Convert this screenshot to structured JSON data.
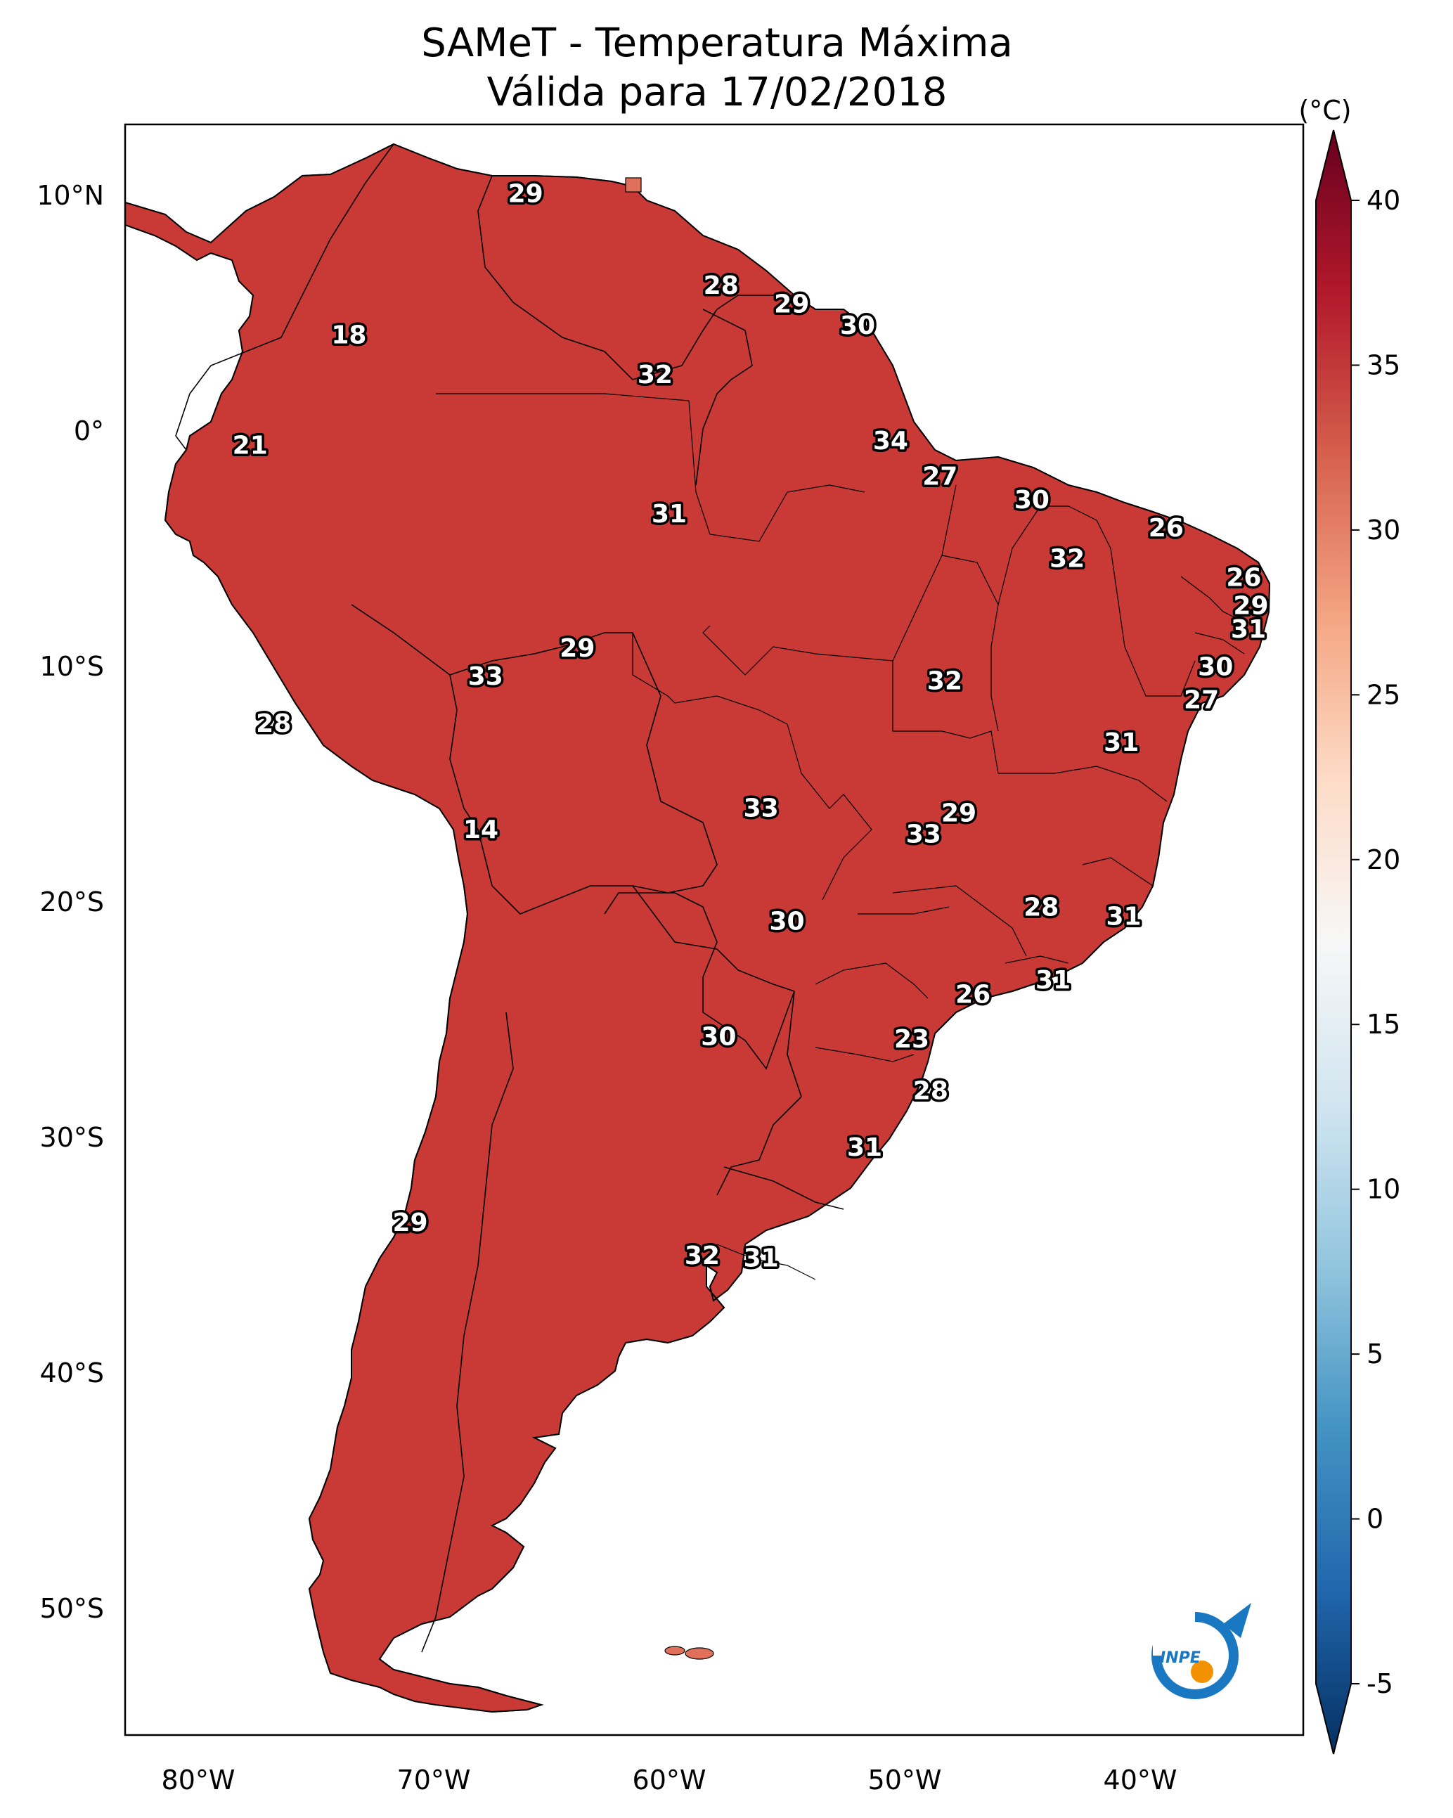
{
  "title_line1": "SAMeT - Temperatura Máxima",
  "title_line2": "Válida para 17/02/2018",
  "colorbar": {
    "unit_label": "(°C)",
    "range": [
      -5,
      40
    ],
    "ticks": [
      "40",
      "35",
      "30",
      "25",
      "20",
      "15",
      "10",
      "5",
      "0",
      "-5"
    ],
    "ramp_colors": [
      "#053061",
      "#2166ac",
      "#4393c3",
      "#92c5de",
      "#d1e5f0",
      "#f7f7f7",
      "#fddbc7",
      "#f4a582",
      "#d6604d",
      "#b2182b",
      "#67001f"
    ]
  },
  "latitude_ticks": [
    "10°N",
    "0°",
    "10°S",
    "20°S",
    "30°S",
    "40°S",
    "50°S"
  ],
  "longitude_ticks": [
    "80°W",
    "70°W",
    "60°W",
    "50°W",
    "40°W"
  ],
  "map_colors": {
    "hot": "#a3152a",
    "warm": "#c93a36",
    "mild": "#e0705a",
    "andes_cool": "#c6dbec",
    "andes_cold": "#5e9ccb"
  },
  "station_values": [
    {
      "value": "29",
      "lon": -66.1,
      "lat": 10.5
    },
    {
      "value": "28",
      "lon": -57.8,
      "lat": 6.6
    },
    {
      "value": "29",
      "lon": -54.8,
      "lat": 5.8
    },
    {
      "value": "30",
      "lon": -52.0,
      "lat": 4.9
    },
    {
      "value": "18",
      "lon": -73.6,
      "lat": 4.5
    },
    {
      "value": "32",
      "lon": -60.6,
      "lat": 2.8
    },
    {
      "value": "34",
      "lon": -50.6,
      "lat": 0.0
    },
    {
      "value": "21",
      "lon": -77.8,
      "lat": -0.2
    },
    {
      "value": "27",
      "lon": -48.5,
      "lat": -1.5
    },
    {
      "value": "30",
      "lon": -44.6,
      "lat": -2.5
    },
    {
      "value": "31",
      "lon": -60.0,
      "lat": -3.1
    },
    {
      "value": "26",
      "lon": -38.9,
      "lat": -3.7
    },
    {
      "value": "32",
      "lon": -43.1,
      "lat": -5.0
    },
    {
      "value": "26",
      "lon": -35.6,
      "lat": -5.8
    },
    {
      "value": "29",
      "lon": -35.3,
      "lat": -7.0
    },
    {
      "value": "31",
      "lon": -35.4,
      "lat": -8.0
    },
    {
      "value": "29",
      "lon": -63.9,
      "lat": -8.8
    },
    {
      "value": "30",
      "lon": -36.8,
      "lat": -9.6
    },
    {
      "value": "33",
      "lon": -67.8,
      "lat": -10.0
    },
    {
      "value": "32",
      "lon": -48.3,
      "lat": -10.2
    },
    {
      "value": "27",
      "lon": -37.4,
      "lat": -11.0
    },
    {
      "value": "28",
      "lon": -76.8,
      "lat": -12.0
    },
    {
      "value": "31",
      "lon": -40.8,
      "lat": -12.8
    },
    {
      "value": "33",
      "lon": -56.1,
      "lat": -15.6
    },
    {
      "value": "29",
      "lon": -47.7,
      "lat": -15.8
    },
    {
      "value": "33",
      "lon": -49.2,
      "lat": -16.7
    },
    {
      "value": "14",
      "lon": -68.0,
      "lat": -16.5
    },
    {
      "value": "28",
      "lon": -44.2,
      "lat": -19.8
    },
    {
      "value": "31",
      "lon": -40.7,
      "lat": -20.2
    },
    {
      "value": "30",
      "lon": -55.0,
      "lat": -20.4
    },
    {
      "value": "31",
      "lon": -43.7,
      "lat": -22.9
    },
    {
      "value": "26",
      "lon": -47.1,
      "lat": -23.5
    },
    {
      "value": "23",
      "lon": -49.7,
      "lat": -25.4
    },
    {
      "value": "30",
      "lon": -57.9,
      "lat": -25.3
    },
    {
      "value": "28",
      "lon": -48.9,
      "lat": -27.6
    },
    {
      "value": "31",
      "lon": -51.7,
      "lat": -30.0
    },
    {
      "value": "29",
      "lon": -71.0,
      "lat": -33.2
    },
    {
      "value": "32",
      "lon": -58.6,
      "lat": -34.6
    },
    {
      "value": "31",
      "lon": -56.1,
      "lat": -34.7
    }
  ]
}
